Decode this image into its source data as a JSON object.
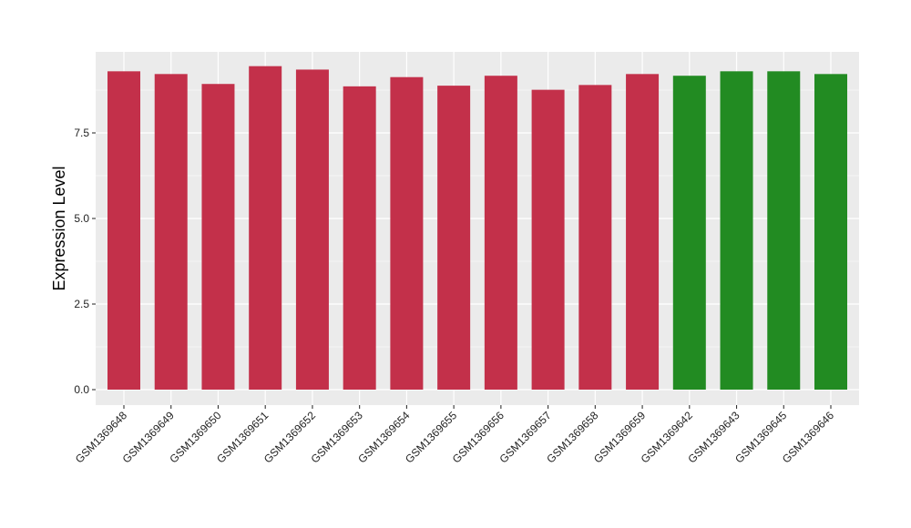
{
  "chart_data": {
    "type": "bar",
    "title": "",
    "xlabel": "",
    "ylabel": "Expression Level",
    "ylim": [
      0,
      9.45
    ],
    "yticks": [
      0.0,
      2.5,
      5.0,
      7.5
    ],
    "ytick_labels": [
      "0.0",
      "2.5",
      "5.0",
      "7.5"
    ],
    "grid": true,
    "legend": "none",
    "categories": [
      "GSM1369648",
      "GSM1369649",
      "GSM1369650",
      "GSM1369651",
      "GSM1369652",
      "GSM1369653",
      "GSM1369654",
      "GSM1369655",
      "GSM1369656",
      "GSM1369657",
      "GSM1369658",
      "GSM1369659",
      "GSM1369642",
      "GSM1369643",
      "GSM1369645",
      "GSM1369646"
    ],
    "values": [
      9.3,
      9.22,
      8.93,
      9.45,
      9.35,
      8.86,
      9.13,
      8.88,
      9.17,
      8.76,
      8.9,
      9.22,
      9.17,
      9.3,
      9.3,
      9.22
    ],
    "bar_colors": [
      "#c3304a",
      "#c3304a",
      "#c3304a",
      "#c3304a",
      "#c3304a",
      "#c3304a",
      "#c3304a",
      "#c3304a",
      "#c3304a",
      "#c3304a",
      "#c3304a",
      "#c3304a",
      "#228b22",
      "#228b22",
      "#228b22",
      "#228b22"
    ],
    "panel_background": "#ebebeb",
    "grid_color": "#ffffff"
  }
}
